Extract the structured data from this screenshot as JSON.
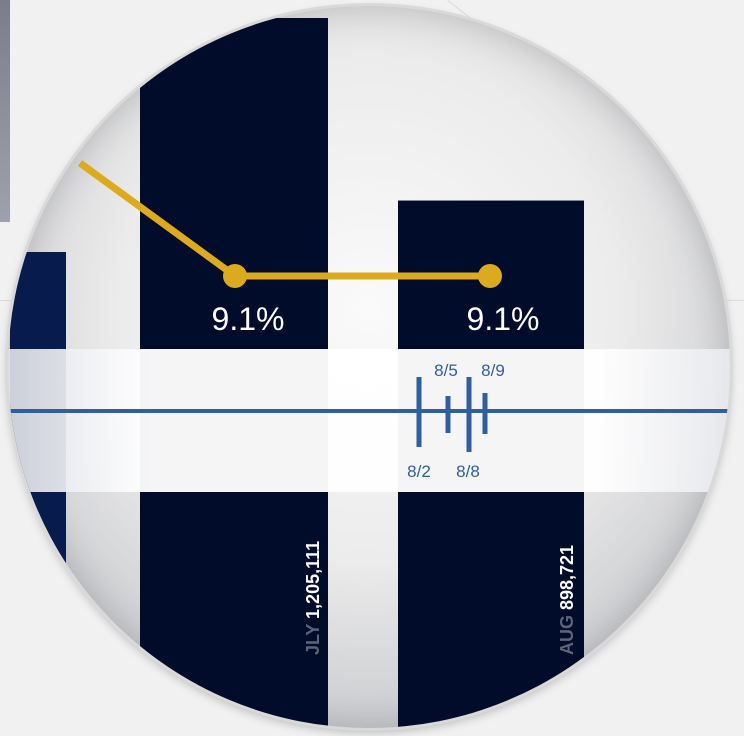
{
  "chart_data": {
    "type": "bar",
    "categories": [
      "JLY",
      "AUG"
    ],
    "values": [
      1205111,
      898721
    ],
    "bar_labels": [
      "1,205,111",
      "898,721"
    ],
    "line_series": {
      "values": [
        9.1,
        9.1
      ],
      "labels": [
        "9.1%",
        "9.1%"
      ]
    },
    "timeline": {
      "ticks_above": [
        "8/5",
        "8/9"
      ],
      "ticks_below": [
        "8/2",
        "8/8"
      ]
    }
  },
  "colors": {
    "bar": "#000c2a",
    "bar_partial": "#071c4c",
    "line": "#dcaa1e",
    "timeline": "#2f5f9e",
    "band": "#ffffff",
    "label_muted": "#5c6478",
    "label_value": "#ffffff"
  }
}
